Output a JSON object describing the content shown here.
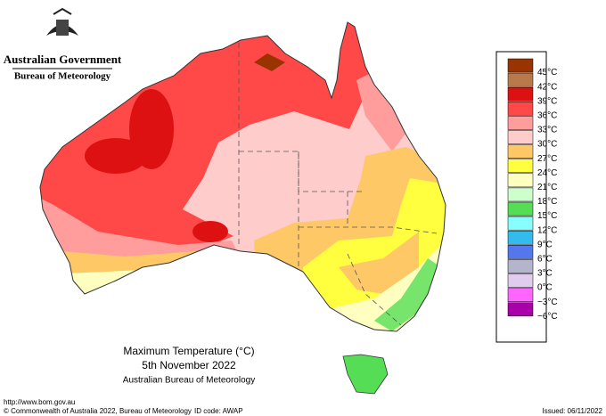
{
  "header": {
    "agency": "Australian Government",
    "bureau": "Bureau of Meteorology"
  },
  "legend": {
    "items": [
      {
        "label": "45°C",
        "color": "#993300"
      },
      {
        "label": "42°C",
        "color": "#b87a4b"
      },
      {
        "label": "39°C",
        "color": "#dd1111"
      },
      {
        "label": "36°C",
        "color": "#ff4848"
      },
      {
        "label": "33°C",
        "color": "#ff9c9c"
      },
      {
        "label": "30°C",
        "color": "#ffcccc"
      },
      {
        "label": "27°C",
        "color": "#ffc866"
      },
      {
        "label": "24°C",
        "color": "#ffff40"
      },
      {
        "label": "21°C",
        "color": "#ffffc0"
      },
      {
        "label": "18°C",
        "color": "#ccffcc"
      },
      {
        "label": "15°C",
        "color": "#55dd55"
      },
      {
        "label": "12°C",
        "color": "#88ffff"
      },
      {
        "label": "9°C",
        "color": "#33bbee"
      },
      {
        "label": "6°C",
        "color": "#5577ee"
      },
      {
        "label": "3°C",
        "color": "#b4b4cc"
      },
      {
        "label": "0°C",
        "color": "#e0ccee"
      },
      {
        "label": "−3°C",
        "color": "#ff66ff"
      },
      {
        "label": "−6°C",
        "color": "#aa00aa"
      }
    ]
  },
  "map_title": {
    "title": "Maximum Temperature (°C)",
    "date": "5th November 2022",
    "source": "Australian Bureau of Meteorology"
  },
  "footer": {
    "url": "http://www.bom.gov.au",
    "copyright": "© Commonwealth of Australia 2022, Bureau of Meteorology",
    "id_code": "ID code: AWAP",
    "issued": "Issued: 06/11/2022"
  }
}
